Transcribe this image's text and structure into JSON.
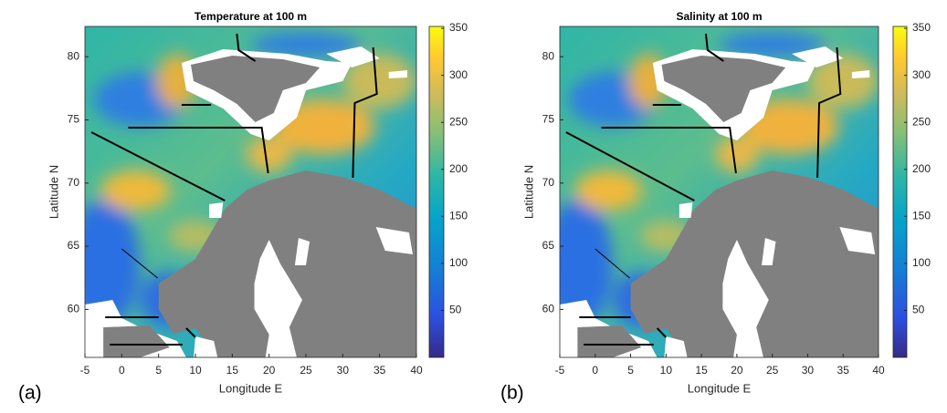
{
  "panels": [
    {
      "label": "(a)",
      "title": "Temperature at 100 m",
      "xlabel": "Longitude E",
      "ylabel": "Latitude N",
      "xlim": [
        -5,
        40
      ],
      "xticks": [
        -5,
        0,
        5,
        10,
        15,
        20,
        25,
        30,
        35,
        40
      ],
      "ylim": [
        56.2,
        82.4
      ],
      "yticks": [
        60,
        65,
        70,
        75,
        80
      ],
      "clim": [
        0,
        352
      ],
      "cticks": [
        50,
        100,
        150,
        200,
        250,
        300,
        350
      ]
    },
    {
      "label": "(b)",
      "title": "Salinity at 100 m",
      "xlabel": "Longitude E",
      "ylabel": "Latitude N",
      "xlim": [
        -5,
        40
      ],
      "xticks": [
        -5,
        0,
        5,
        10,
        15,
        20,
        25,
        30,
        35,
        40
      ],
      "ylim": [
        56.2,
        82.4
      ],
      "yticks": [
        60,
        65,
        70,
        75,
        80
      ],
      "clim": [
        0,
        352
      ],
      "cticks": [
        50,
        100,
        150,
        200,
        250,
        300,
        350
      ]
    }
  ]
}
